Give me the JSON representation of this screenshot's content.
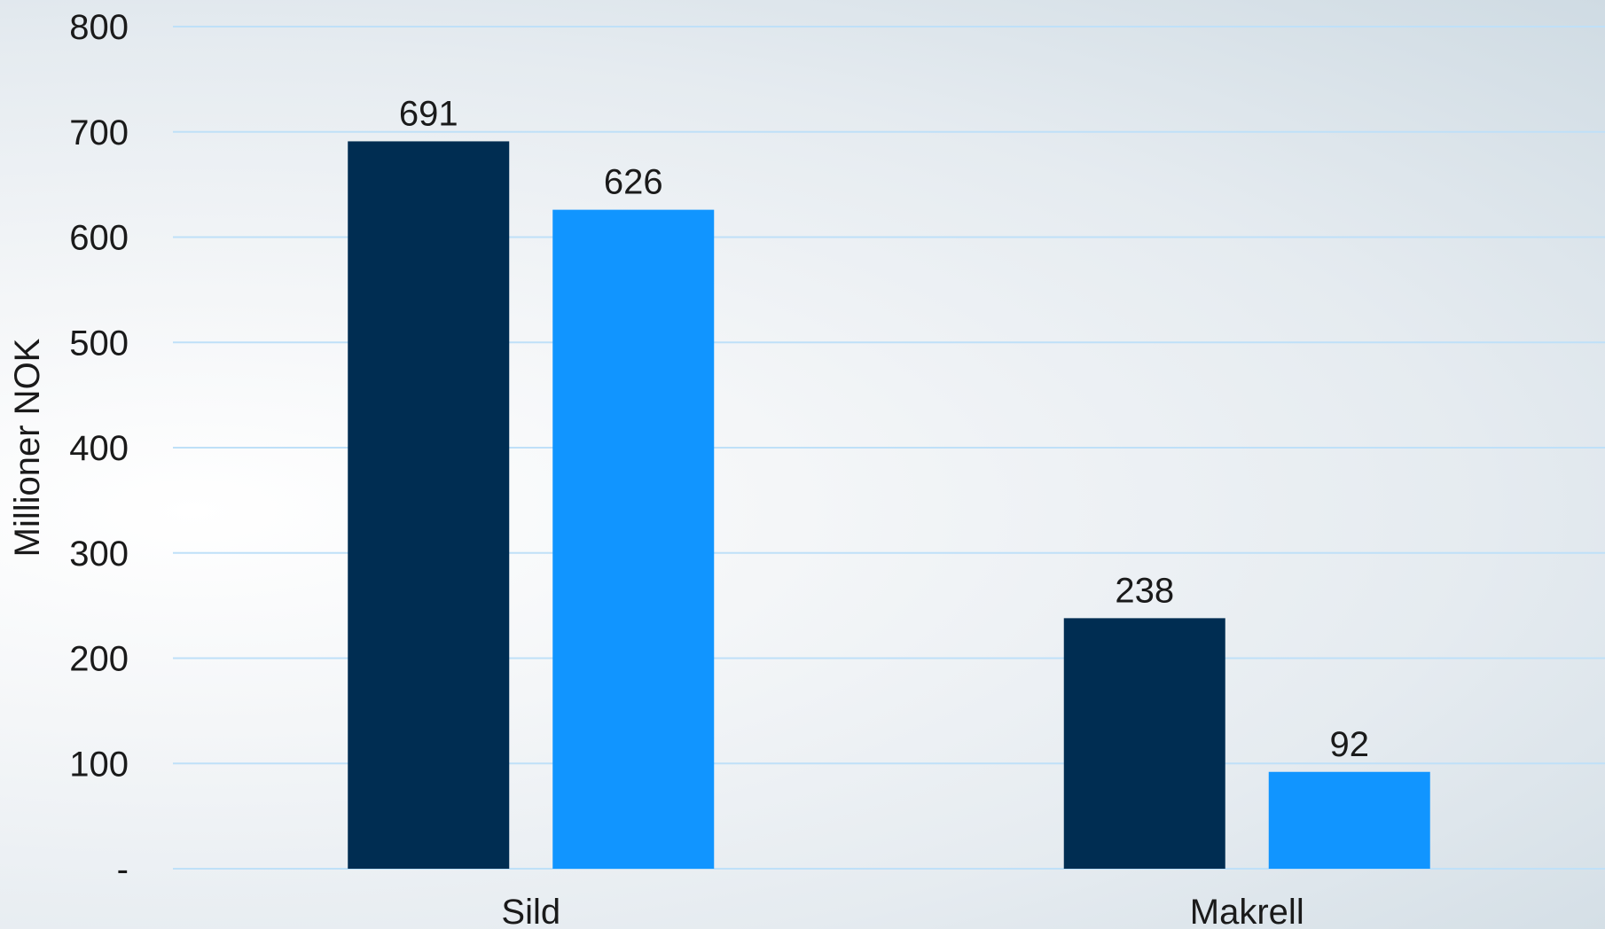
{
  "chart_data": {
    "type": "bar",
    "categories": [
      "Sild",
      "Makrell"
    ],
    "series": [
      {
        "values": [
          691,
          238
        ],
        "color": "#002d52"
      },
      {
        "values": [
          626,
          92
        ],
        "color": "#1195ff"
      }
    ],
    "data_labels": [
      [
        "691",
        "238"
      ],
      [
        "626",
        "92"
      ]
    ],
    "title": "",
    "xlabel": "",
    "ylabel": "Millioner NOK",
    "ylim": [
      0,
      800
    ],
    "yticks": [
      0,
      100,
      200,
      300,
      400,
      500,
      600,
      700,
      800
    ],
    "ytick_labels": [
      "-",
      "100",
      "200",
      "300",
      "400",
      "500",
      "600",
      "700",
      "800"
    ],
    "grid": true,
    "legend": "none"
  }
}
